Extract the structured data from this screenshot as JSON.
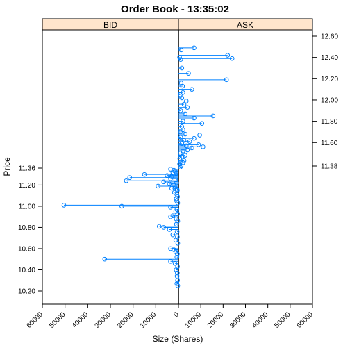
{
  "colors": {
    "marker": "#0080ff",
    "strip_bg": "#ffe5cc",
    "axis": "#000000"
  },
  "chart_data": {
    "type": "scatter",
    "title": "Order Book - 13:35:02",
    "xlabel": "Size (Shares)",
    "ylabel": "Price",
    "xlim": [
      0,
      60000
    ],
    "x_ticks": [
      "60000",
      "50000",
      "40000",
      "30000",
      "20000",
      "10000",
      "0",
      "10000",
      "20000",
      "30000",
      "40000",
      "50000",
      "60000"
    ],
    "bid_y_ticks": [
      "10.20",
      "10.40",
      "10.60",
      "10.80",
      "11.00",
      "11.20",
      "11.36"
    ],
    "ask_y_ticks": [
      "11.38",
      "11.60",
      "11.80",
      "12.00",
      "12.20",
      "12.40",
      "12.60"
    ],
    "panels": [
      {
        "name": "BID",
        "side": "left",
        "points": [
          [
            11.35,
            3500
          ],
          [
            11.34,
            2000
          ],
          [
            11.33,
            1500
          ],
          [
            11.32,
            2500
          ],
          [
            11.31,
            1000
          ],
          [
            11.3,
            15000
          ],
          [
            11.29,
            5000
          ],
          [
            11.28,
            3000
          ],
          [
            11.27,
            21500
          ],
          [
            11.26,
            3500
          ],
          [
            11.25,
            1200
          ],
          [
            11.24,
            23000
          ],
          [
            11.23,
            6500
          ],
          [
            11.22,
            800
          ],
          [
            11.21,
            4000
          ],
          [
            11.2,
            2000
          ],
          [
            11.19,
            9000
          ],
          [
            11.18,
            1500
          ],
          [
            11.17,
            3000
          ],
          [
            11.16,
            600
          ],
          [
            11.15,
            500
          ],
          [
            11.13,
            1800
          ],
          [
            11.11,
            700
          ],
          [
            11.09,
            400
          ],
          [
            11.07,
            1000
          ],
          [
            11.05,
            800
          ],
          [
            11.03,
            300
          ],
          [
            11.01,
            50500
          ],
          [
            11.0,
            25000
          ],
          [
            10.99,
            3500
          ],
          [
            10.97,
            700
          ],
          [
            10.95,
            1200
          ],
          [
            10.93,
            400
          ],
          [
            10.91,
            2500
          ],
          [
            10.9,
            3500
          ],
          [
            10.88,
            1000
          ],
          [
            10.86,
            300
          ],
          [
            10.83,
            900
          ],
          [
            10.81,
            8500
          ],
          [
            10.8,
            6500
          ],
          [
            10.78,
            4000
          ],
          [
            10.76,
            600
          ],
          [
            10.73,
            2500
          ],
          [
            10.71,
            500
          ],
          [
            10.68,
            1200
          ],
          [
            10.65,
            300
          ],
          [
            10.6,
            3500
          ],
          [
            10.59,
            2000
          ],
          [
            10.57,
            1200
          ],
          [
            10.55,
            500
          ],
          [
            10.52,
            700
          ],
          [
            10.5,
            32500
          ],
          [
            10.48,
            3500
          ],
          [
            10.46,
            1500
          ],
          [
            10.43,
            400
          ],
          [
            10.4,
            1000
          ],
          [
            10.37,
            500
          ],
          [
            10.34,
            600
          ],
          [
            10.3,
            400
          ],
          [
            10.27,
            700
          ],
          [
            10.25,
            300
          ]
        ]
      },
      {
        "name": "ASK",
        "side": "right",
        "points": [
          [
            11.37,
            800
          ],
          [
            11.38,
            1200
          ],
          [
            11.4,
            500
          ],
          [
            11.41,
            2000
          ],
          [
            11.42,
            1000
          ],
          [
            11.43,
            2500
          ],
          [
            11.45,
            600
          ],
          [
            11.47,
            1500
          ],
          [
            11.48,
            3000
          ],
          [
            11.5,
            800
          ],
          [
            11.52,
            2000
          ],
          [
            11.53,
            4000
          ],
          [
            11.55,
            6000
          ],
          [
            11.56,
            11000
          ],
          [
            11.57,
            3500
          ],
          [
            11.58,
            9000
          ],
          [
            11.59,
            1500
          ],
          [
            11.61,
            5000
          ],
          [
            11.62,
            2500
          ],
          [
            11.64,
            7000
          ],
          [
            11.65,
            1000
          ],
          [
            11.67,
            9500
          ],
          [
            11.68,
            3000
          ],
          [
            11.7,
            800
          ],
          [
            11.72,
            2000
          ],
          [
            11.75,
            1500
          ],
          [
            11.78,
            10500
          ],
          [
            11.8,
            2000
          ],
          [
            11.83,
            7000
          ],
          [
            11.85,
            15500
          ],
          [
            11.87,
            3000
          ],
          [
            11.9,
            1000
          ],
          [
            11.93,
            4000
          ],
          [
            11.96,
            2500
          ],
          [
            11.99,
            3500
          ],
          [
            12.02,
            1500
          ],
          [
            12.05,
            800
          ],
          [
            12.07,
            2000
          ],
          [
            12.1,
            6000
          ],
          [
            12.13,
            1800
          ],
          [
            12.16,
            1200
          ],
          [
            12.19,
            21500
          ],
          [
            12.25,
            4500
          ],
          [
            12.3,
            1500
          ],
          [
            12.38,
            1000
          ],
          [
            12.39,
            24000
          ],
          [
            12.4,
            500
          ],
          [
            12.42,
            22000
          ],
          [
            12.47,
            1200
          ],
          [
            12.49,
            7000
          ]
        ]
      }
    ]
  }
}
